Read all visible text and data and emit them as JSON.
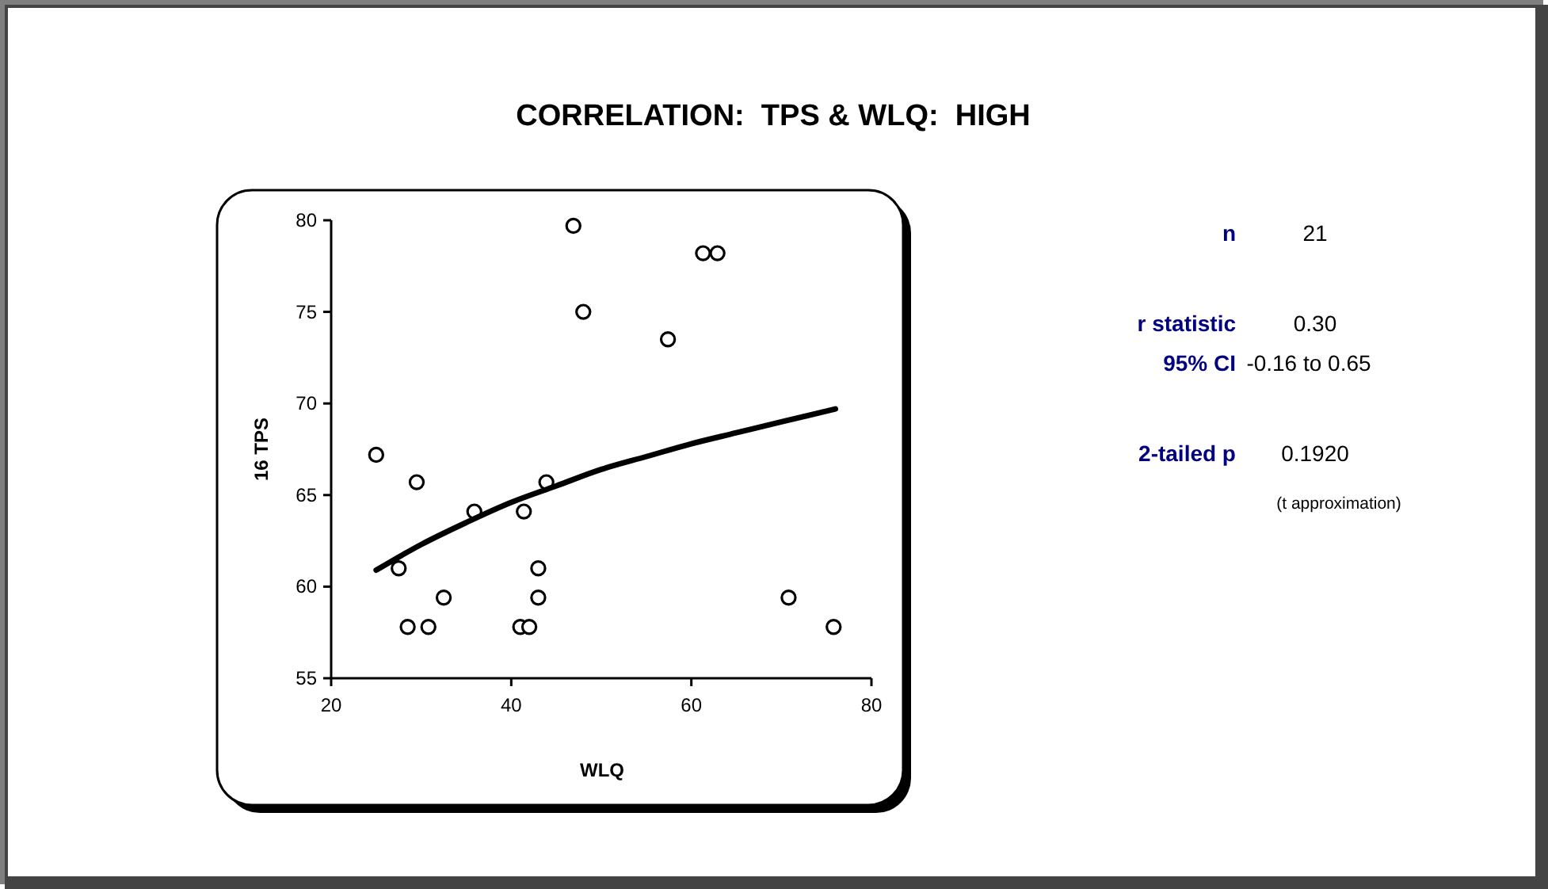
{
  "chart_data": {
    "type": "scatter",
    "title": "CORRELATION:  TPS & WLQ:  HIGH",
    "xlabel": "WLQ",
    "ylabel": "16 TPS",
    "xlim": [
      20,
      80
    ],
    "xticks": [
      20,
      40,
      60,
      80
    ],
    "ylim": [
      55,
      80
    ],
    "yticks": [
      55,
      60,
      65,
      70,
      75,
      80
    ],
    "grid": false,
    "series": [
      {
        "type": "scatter",
        "color": "#000000",
        "marker": "circle",
        "x": [
          25.0,
          29.5,
          27.5,
          28.5,
          30.8,
          32.5,
          35.9,
          41.4,
          43.9,
          43.0,
          43.0,
          41.0,
          42.0,
          46.9,
          48.0,
          61.3,
          62.9,
          57.4,
          70.8,
          75.8
        ],
        "values": [
          67.2,
          65.7,
          61.0,
          57.8,
          57.8,
          59.4,
          64.1,
          64.1,
          65.7,
          61.0,
          59.4,
          57.8,
          57.8,
          79.7,
          75.0,
          78.2,
          78.2,
          73.5,
          59.4,
          57.8
        ]
      },
      {
        "type": "line",
        "color": "#000000",
        "marker": "none",
        "line_style": "solid",
        "x": [
          25,
          30,
          35,
          40,
          45,
          50,
          55,
          60,
          65,
          70,
          76
        ],
        "values": [
          60.9,
          62.3,
          63.5,
          64.6,
          65.5,
          66.4,
          67.1,
          67.8,
          68.4,
          69.0,
          69.7
        ]
      }
    ],
    "annotations": [
      "n",
      "21",
      "r statistic",
      "0.30",
      "95% CI",
      "-0.16 to 0.65",
      "2-tailed p",
      "0.1920",
      "(t approximation)"
    ]
  }
}
